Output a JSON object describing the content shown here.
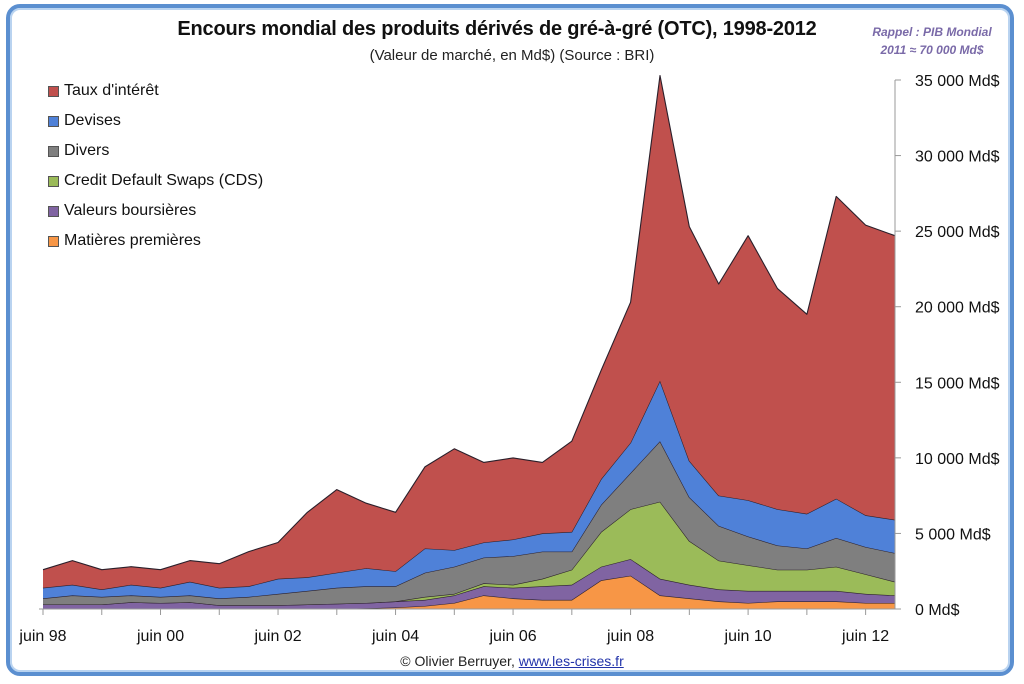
{
  "chart_data": {
    "type": "area",
    "stacked": true,
    "title": "Encours mondial des produits dérivés de gré-à-gré (OTC), 1998-2012",
    "subtitle": "(Valeur de marché, en Md$) (Source : BRI)",
    "annotation": [
      "Rappel : PIB Mondial",
      "2011 ≈ 70 000 Md$"
    ],
    "xlabel": "",
    "ylabel": "",
    "ylim": [
      0,
      35000
    ],
    "y_ticks": [
      0,
      5000,
      10000,
      15000,
      20000,
      25000,
      30000,
      35000
    ],
    "y_tick_labels": [
      "0 Md$",
      "5 000 Md$",
      "10 000 Md$",
      "15 000 Md$",
      "20 000 Md$",
      "25 000 Md$",
      "30 000 Md$",
      "35 000 Md$"
    ],
    "y_axis_side": "right",
    "x": [
      "juin 98",
      "déc 98",
      "juin 99",
      "déc 99",
      "juin 00",
      "déc 00",
      "juin 01",
      "déc 01",
      "juin 02",
      "déc 02",
      "juin 03",
      "déc 03",
      "juin 04",
      "déc 04",
      "juin 05",
      "déc 05",
      "juin 06",
      "déc 06",
      "juin 07",
      "déc 07",
      "juin 08",
      "déc 08",
      "juin 09",
      "déc 09",
      "juin 10",
      "déc 10",
      "juin 11",
      "déc 11",
      "juin 12",
      "déc 12"
    ],
    "x_tick_labels": [
      "juin 98",
      "juin 00",
      "juin 02",
      "juin 04",
      "juin 06",
      "juin 08",
      "juin 10",
      "juin 12"
    ],
    "x_tick_label_indices": [
      0,
      4,
      8,
      12,
      16,
      20,
      24,
      28
    ],
    "grid": false,
    "legend_position": "top-left",
    "series": [
      {
        "name": "Matières premières",
        "color": "#f79646",
        "values": [
          0,
          0,
          0,
          0,
          0,
          0,
          0,
          0,
          0,
          0,
          0,
          50,
          100,
          200,
          400,
          900,
          700,
          600,
          600,
          1900,
          2200,
          900,
          700,
          500,
          400,
          500,
          500,
          500,
          400,
          400
        ]
      },
      {
        "name": "Valeurs boursières",
        "color": "#8064a2",
        "values": [
          300,
          300,
          300,
          450,
          400,
          450,
          250,
          250,
          250,
          300,
          350,
          350,
          400,
          400,
          500,
          600,
          700,
          900,
          1000,
          900,
          1100,
          1100,
          900,
          800,
          800,
          700,
          700,
          700,
          600,
          500
        ]
      },
      {
        "name": "Credit Default Swaps (CDS)",
        "color": "#9bbb59",
        "values": [
          0,
          0,
          0,
          0,
          0,
          0,
          0,
          0,
          0,
          0,
          0,
          0,
          0,
          200,
          100,
          200,
          200,
          500,
          1000,
          2300,
          3300,
          5100,
          2900,
          1900,
          1700,
          1400,
          1400,
          1600,
          1300,
          900
        ]
      },
      {
        "name": "Divers",
        "color": "#7f7f7f",
        "values": [
          400,
          600,
          500,
          450,
          400,
          450,
          450,
          550,
          750,
          900,
          1050,
          1100,
          1000,
          1600,
          1800,
          1700,
          1900,
          1800,
          1200,
          1800,
          2400,
          4000,
          2900,
          2300,
          1900,
          1600,
          1400,
          1900,
          1800,
          1900
        ]
      },
      {
        "name": "Devises",
        "color": "#4f81d8",
        "values": [
          700,
          700,
          500,
          700,
          600,
          900,
          700,
          700,
          1000,
          900,
          1000,
          1200,
          1000,
          1600,
          1100,
          1000,
          1100,
          1200,
          1300,
          1700,
          2000,
          4000,
          2400,
          2000,
          2400,
          2400,
          2300,
          2600,
          2100,
          2200
        ]
      },
      {
        "name": "Taux d'intérêt",
        "color": "#c0504d",
        "values": [
          1200,
          1600,
          1300,
          1200,
          1200,
          1400,
          1600,
          2300,
          2400,
          4300,
          5500,
          4300,
          3900,
          5400,
          6700,
          5300,
          5400,
          4700,
          6000,
          7200,
          9300,
          20200,
          15500,
          14000,
          17500,
          14600,
          13200,
          20000,
          19200,
          18800
        ]
      }
    ]
  },
  "legend": {
    "items": [
      {
        "label": "Taux d'intérêt",
        "color": "#c0504d"
      },
      {
        "label": "Devises",
        "color": "#4f81d8"
      },
      {
        "label": "Divers",
        "color": "#7f7f7f"
      },
      {
        "label": "Credit Default Swaps (CDS)",
        "color": "#9bbb59"
      },
      {
        "label": "Valeurs boursières",
        "color": "#8064a2"
      },
      {
        "label": "Matières premières",
        "color": "#f79646"
      }
    ]
  },
  "footer": {
    "copyright": "© Olivier Berruyer, ",
    "link_text": "www.les-crises.fr"
  }
}
